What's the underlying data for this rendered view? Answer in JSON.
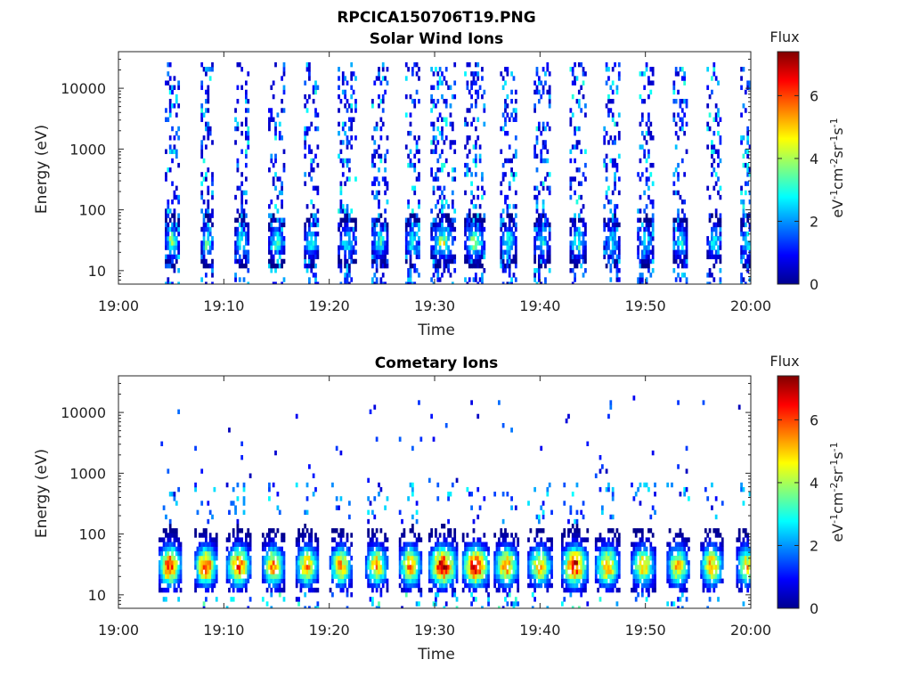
{
  "figure": {
    "title": "RPCICA150706T19.PNG"
  },
  "chart_data": [
    {
      "type": "heatmap",
      "title": "Solar Wind Ions",
      "xlabel": "Time",
      "ylabel": "Energy (eV)",
      "yscale": "log",
      "xlim": [
        "19:00",
        "20:00"
      ],
      "ylim": [
        6,
        40000
      ],
      "xticks": [
        "19:00",
        "19:10",
        "19:20",
        "19:30",
        "19:40",
        "19:50",
        "20:00"
      ],
      "yticks": [
        {
          "value": 10,
          "label": "10"
        },
        {
          "value": 100,
          "label": "100"
        },
        {
          "value": 1000,
          "label": "1000"
        },
        {
          "value": 10000,
          "label": "10000"
        }
      ],
      "colorbar": {
        "title": "Flux",
        "label": "eV-1cm-2sr-1s-1",
        "label_display": [
          "eV",
          "-1",
          "cm",
          "-2",
          "sr",
          "-1",
          "s",
          "-1"
        ],
        "range": [
          0,
          7.4
        ],
        "ticks": [
          "0",
          "2",
          "4",
          "6"
        ],
        "colormap": "jet"
      },
      "sweeps": [
        {
          "start": "19:04.4",
          "end": "19:05.8",
          "peak_flux": 4.6,
          "peak_energy": 30
        },
        {
          "start": "19:07.8",
          "end": "19:09.0",
          "peak_flux": 4.2,
          "peak_energy": 30
        },
        {
          "start": "19:11.0",
          "end": "19:12.4",
          "peak_flux": 3.8,
          "peak_energy": 30
        },
        {
          "start": "19:14.2",
          "end": "19:15.8",
          "peak_flux": 3.8,
          "peak_energy": 30
        },
        {
          "start": "19:17.6",
          "end": "19:19.0",
          "peak_flux": 3.8,
          "peak_energy": 30
        },
        {
          "start": "19:20.8",
          "end": "19:22.6",
          "peak_flux": 3.4,
          "peak_energy": 30
        },
        {
          "start": "19:24.0",
          "end": "19:25.6",
          "peak_flux": 3.6,
          "peak_energy": 30
        },
        {
          "start": "19:27.2",
          "end": "19:28.6",
          "peak_flux": 3.8,
          "peak_energy": 30
        },
        {
          "start": "19:29.6",
          "end": "19:32.0",
          "peak_flux": 4.8,
          "peak_energy": 30
        },
        {
          "start": "19:32.8",
          "end": "19:34.8",
          "peak_flux": 4.8,
          "peak_energy": 30
        },
        {
          "start": "19:36.2",
          "end": "19:37.8",
          "peak_flux": 3.8,
          "peak_energy": 30
        },
        {
          "start": "19:39.4",
          "end": "19:41.0",
          "peak_flux": 3.4,
          "peak_energy": 30
        },
        {
          "start": "19:42.8",
          "end": "19:44.4",
          "peak_flux": 4.0,
          "peak_energy": 30
        },
        {
          "start": "19:46.0",
          "end": "19:47.6",
          "peak_flux": 3.4,
          "peak_energy": 30
        },
        {
          "start": "19:49.2",
          "end": "19:50.8",
          "peak_flux": 3.4,
          "peak_energy": 30
        },
        {
          "start": "19:52.6",
          "end": "19:54.0",
          "peak_flux": 3.6,
          "peak_energy": 30
        },
        {
          "start": "19:55.8",
          "end": "19:57.2",
          "peak_flux": 3.6,
          "peak_energy": 30
        },
        {
          "start": "19:59.0",
          "end": "20:00.4",
          "peak_flux": 3.8,
          "peak_energy": 30
        }
      ]
    },
    {
      "type": "heatmap",
      "title": "Cometary Ions",
      "xlabel": "Time",
      "ylabel": "Energy (eV)",
      "yscale": "log",
      "xlim": [
        "19:00",
        "20:00"
      ],
      "ylim": [
        6,
        40000
      ],
      "xticks": [
        "19:00",
        "19:10",
        "19:20",
        "19:30",
        "19:40",
        "19:50",
        "20:00"
      ],
      "yticks": [
        {
          "value": 10,
          "label": "10"
        },
        {
          "value": 100,
          "label": "100"
        },
        {
          "value": 1000,
          "label": "1000"
        },
        {
          "value": 10000,
          "label": "10000"
        }
      ],
      "colorbar": {
        "title": "Flux",
        "label": "eV-1cm-2sr-1s-1",
        "label_display": [
          "eV",
          "-1",
          "cm",
          "-2",
          "sr",
          "-1",
          "s",
          "-1"
        ],
        "range": [
          0,
          7.4
        ],
        "ticks": [
          "0",
          "2",
          "4",
          "6"
        ],
        "colormap": "jet"
      },
      "sweeps": [
        {
          "start": "19:03.8",
          "end": "19:06.0",
          "peak_flux": 6.8,
          "peak_energy": 30
        },
        {
          "start": "19:07.2",
          "end": "19:09.4",
          "peak_flux": 6.6,
          "peak_energy": 30
        },
        {
          "start": "19:10.2",
          "end": "19:12.6",
          "peak_flux": 6.4,
          "peak_energy": 30
        },
        {
          "start": "19:13.6",
          "end": "19:15.8",
          "peak_flux": 5.8,
          "peak_energy": 30
        },
        {
          "start": "19:16.8",
          "end": "19:19.0",
          "peak_flux": 5.8,
          "peak_energy": 30
        },
        {
          "start": "19:20.0",
          "end": "19:22.2",
          "peak_flux": 5.6,
          "peak_energy": 30
        },
        {
          "start": "19:23.4",
          "end": "19:25.6",
          "peak_flux": 5.6,
          "peak_energy": 30
        },
        {
          "start": "19:26.6",
          "end": "19:28.8",
          "peak_flux": 6.0,
          "peak_energy": 30
        },
        {
          "start": "19:29.4",
          "end": "19:32.2",
          "peak_flux": 7.2,
          "peak_energy": 30
        },
        {
          "start": "19:32.6",
          "end": "19:35.2",
          "peak_flux": 7.4,
          "peak_energy": 30
        },
        {
          "start": "19:35.6",
          "end": "19:38.0",
          "peak_flux": 5.8,
          "peak_energy": 30
        },
        {
          "start": "19:38.8",
          "end": "19:41.2",
          "peak_flux": 5.4,
          "peak_energy": 30
        },
        {
          "start": "19:42.0",
          "end": "19:44.6",
          "peak_flux": 7.0,
          "peak_energy": 30
        },
        {
          "start": "19:45.2",
          "end": "19:47.6",
          "peak_flux": 5.8,
          "peak_energy": 30
        },
        {
          "start": "19:48.6",
          "end": "19:51.0",
          "peak_flux": 5.4,
          "peak_energy": 30
        },
        {
          "start": "19:52.0",
          "end": "19:54.2",
          "peak_flux": 5.4,
          "peak_energy": 30
        },
        {
          "start": "19:55.2",
          "end": "19:57.4",
          "peak_flux": 5.8,
          "peak_energy": 30
        },
        {
          "start": "19:58.6",
          "end": "20:00.6",
          "peak_flux": 5.4,
          "peak_energy": 30
        }
      ]
    }
  ]
}
